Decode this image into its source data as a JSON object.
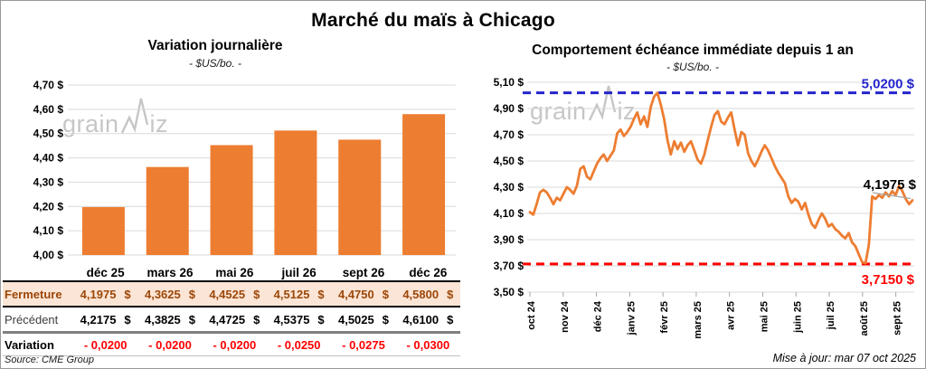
{
  "page": {
    "title": "Marché du maïs à Chicago",
    "source": "Source: CME Group",
    "updated": "Mise à jour: mar 07 oct 2025",
    "watermark": {
      "part1": "grain",
      "part2": "iz",
      "full": "grainwiz"
    }
  },
  "colors": {
    "orange": "#ED7D31",
    "blue": "#2424CE",
    "red": "#FF0000",
    "brown": "#9C4708",
    "peach": "#FBE5D6",
    "grid": "#D9D9D9",
    "tick": "#A6A6A6",
    "leader": "#A6A6A6",
    "watermark": "#BDBDBD",
    "label_text": "#000000"
  },
  "chart_data": [
    {
      "type": "bar",
      "title": "Variation journalière",
      "subtitle": "- $US/bo. -",
      "categories": [
        "déc 25",
        "mars 26",
        "mai 26",
        "juil 26",
        "sept 26",
        "déc 26"
      ],
      "values": [
        4.1975,
        4.3625,
        4.4525,
        4.5125,
        4.475,
        4.58
      ],
      "ylim": [
        4.0,
        4.7
      ],
      "ytick_step": 0.1,
      "ytick_labels": [
        "4,00 $",
        "4,10 $",
        "4,20 $",
        "4,30 $",
        "4,40 $",
        "4,50 $",
        "4,60 $",
        "4,70 $"
      ],
      "grid": true,
      "bar_color": "#ED7D31"
    },
    {
      "type": "line",
      "title": "Comportement échéance immédiate depuis 1 an",
      "subtitle": "- $US/bo. -",
      "x_tick_labels": [
        "oct 24",
        "nov 24",
        "déc 24",
        "janv 25",
        "févr 25",
        "mars 25",
        "avr 25",
        "mai 25",
        "juin 25",
        "juil 25",
        "août 25",
        "sept 25"
      ],
      "months_span": 11.5,
      "ylim": [
        3.5,
        5.1
      ],
      "ytick_step": 0.2,
      "ytick_labels": [
        "3,50 $",
        "3,70 $",
        "3,90 $",
        "4,10 $",
        "4,30 $",
        "4,50 $",
        "4,70 $",
        "4,90 $",
        "5,10 $"
      ],
      "grid": true,
      "line_color": "#ED7D31",
      "high_line": {
        "value": 5.02,
        "label": "5,0200 $",
        "color": "#2424CE"
      },
      "low_line": {
        "value": 3.715,
        "label": "3,7150 $",
        "color": "#FF0000"
      },
      "last_point": {
        "value": 4.1975,
        "label": "4,1975 $"
      },
      "values": [
        4.11,
        4.09,
        4.17,
        4.26,
        4.28,
        4.26,
        4.22,
        4.17,
        4.22,
        4.2,
        4.25,
        4.3,
        4.28,
        4.25,
        4.31,
        4.44,
        4.46,
        4.38,
        4.36,
        4.42,
        4.48,
        4.52,
        4.55,
        4.5,
        4.54,
        4.58,
        4.71,
        4.74,
        4.69,
        4.72,
        4.76,
        4.82,
        4.87,
        4.78,
        4.84,
        4.76,
        4.91,
        4.99,
        5.02,
        4.93,
        4.82,
        4.66,
        4.55,
        4.65,
        4.59,
        4.64,
        4.57,
        4.62,
        4.65,
        4.58,
        4.51,
        4.48,
        4.55,
        4.66,
        4.76,
        4.85,
        4.88,
        4.8,
        4.78,
        4.83,
        4.87,
        4.74,
        4.62,
        4.72,
        4.7,
        4.56,
        4.5,
        4.46,
        4.51,
        4.57,
        4.62,
        4.58,
        4.52,
        4.46,
        4.41,
        4.37,
        4.33,
        4.23,
        4.18,
        4.21,
        4.19,
        4.13,
        4.18,
        4.09,
        4.02,
        3.99,
        4.05,
        4.1,
        4.06,
        4.0,
        4.02,
        3.98,
        3.96,
        3.93,
        3.91,
        3.95,
        3.88,
        3.85,
        3.79,
        3.73,
        3.72,
        3.86,
        4.23,
        4.21,
        4.24,
        4.22,
        4.26,
        4.23,
        4.27,
        4.24,
        4.31,
        4.27,
        4.21,
        4.17,
        4.2
      ]
    }
  ],
  "table": {
    "columns": [
      "déc 25",
      "mars 26",
      "mai 26",
      "juil 26",
      "sept 26",
      "déc 26"
    ],
    "rows": [
      {
        "label": "Fermeture",
        "currency": "$",
        "values": [
          "4,1975",
          "4,3625",
          "4,4525",
          "4,5125",
          "4,4750",
          "4,5800"
        ]
      },
      {
        "label": "Précédent",
        "currency": "$",
        "values": [
          "4,2175",
          "4,3825",
          "4,4725",
          "4,5375",
          "4,5025",
          "4,6100"
        ]
      },
      {
        "label": "Variation",
        "currency": "",
        "values": [
          "- 0,0200",
          "- 0,0200",
          "- 0,0200",
          "- 0,0250",
          "- 0,0275",
          "- 0,0300"
        ]
      }
    ]
  }
}
